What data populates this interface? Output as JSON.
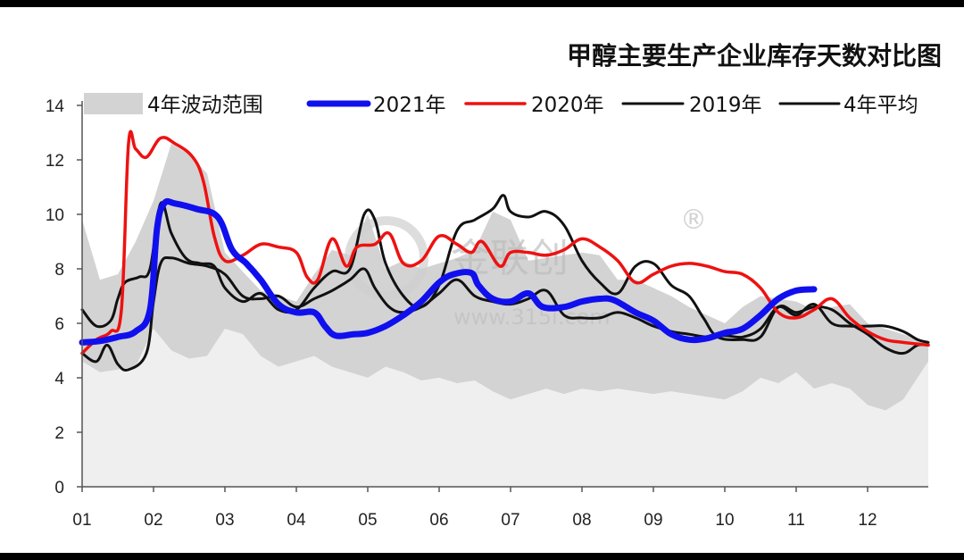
{
  "chart_data": {
    "type": "line",
    "title": "甲醇主要生产企业库存天数对比图",
    "xlabel": "",
    "ylabel": "",
    "ylim": [
      0,
      14
    ],
    "yticks": [
      "0",
      "2",
      "4",
      "6",
      "8",
      "10",
      "12",
      "14"
    ],
    "xlim": [
      0,
      11.85
    ],
    "xticks": [
      "01",
      "02",
      "03",
      "04",
      "05",
      "06",
      "07",
      "08",
      "09",
      "10",
      "11",
      "12"
    ],
    "watermark": {
      "logo": "金联创",
      "registered": "®",
      "url": "www.315i.com"
    },
    "range_band": {
      "name": "4年波动范围",
      "color": "#d3d3d3",
      "upper": [
        [
          0,
          9.8
        ],
        [
          0.25,
          7.6
        ],
        [
          0.5,
          7.8
        ],
        [
          0.75,
          9.0
        ],
        [
          1.0,
          10.5
        ],
        [
          1.25,
          12.6
        ],
        [
          1.5,
          12.2
        ],
        [
          1.75,
          11.5
        ],
        [
          2.0,
          8.6
        ],
        [
          2.25,
          7.9
        ],
        [
          2.5,
          7.2
        ],
        [
          2.75,
          7.0
        ],
        [
          3.0,
          6.8
        ],
        [
          3.25,
          7.8
        ],
        [
          3.5,
          8.7
        ],
        [
          3.75,
          8.5
        ],
        [
          4.0,
          10.0
        ],
        [
          4.25,
          8.0
        ],
        [
          4.5,
          8.3
        ],
        [
          4.75,
          8.0
        ],
        [
          5.0,
          8.2
        ],
        [
          5.25,
          8.4
        ],
        [
          5.5,
          8.7
        ],
        [
          5.75,
          10.1
        ],
        [
          6.0,
          9.8
        ],
        [
          6.25,
          8.3
        ],
        [
          6.5,
          8.4
        ],
        [
          6.75,
          8.5
        ],
        [
          7.0,
          8.6
        ],
        [
          7.25,
          8.5
        ],
        [
          7.5,
          7.6
        ],
        [
          7.75,
          7.6
        ],
        [
          8.0,
          7.3
        ],
        [
          8.25,
          7.0
        ],
        [
          8.5,
          6.6
        ],
        [
          8.75,
          6.3
        ],
        [
          9.0,
          6.0
        ],
        [
          9.25,
          6.6
        ],
        [
          9.5,
          7.0
        ],
        [
          9.75,
          6.9
        ],
        [
          10.0,
          6.8
        ],
        [
          10.25,
          6.5
        ],
        [
          10.5,
          6.6
        ],
        [
          10.75,
          6.7
        ],
        [
          11.0,
          6.0
        ],
        [
          11.25,
          5.8
        ],
        [
          11.5,
          5.6
        ],
        [
          11.85,
          5.3
        ]
      ],
      "lower": [
        [
          0,
          4.6
        ],
        [
          0.25,
          4.2
        ],
        [
          0.5,
          4.3
        ],
        [
          0.75,
          4.4
        ],
        [
          1.0,
          5.8
        ],
        [
          1.25,
          5.0
        ],
        [
          1.5,
          4.7
        ],
        [
          1.75,
          4.8
        ],
        [
          2.0,
          5.8
        ],
        [
          2.25,
          5.6
        ],
        [
          2.5,
          4.8
        ],
        [
          2.75,
          4.4
        ],
        [
          3.0,
          4.6
        ],
        [
          3.25,
          4.8
        ],
        [
          3.5,
          4.4
        ],
        [
          3.75,
          4.2
        ],
        [
          4.0,
          4.0
        ],
        [
          4.25,
          4.4
        ],
        [
          4.5,
          4.2
        ],
        [
          4.75,
          3.9
        ],
        [
          5.0,
          4.0
        ],
        [
          5.25,
          3.8
        ],
        [
          5.5,
          3.9
        ],
        [
          5.75,
          3.5
        ],
        [
          6.0,
          3.2
        ],
        [
          6.25,
          3.4
        ],
        [
          6.5,
          3.6
        ],
        [
          6.75,
          3.4
        ],
        [
          7.0,
          3.6
        ],
        [
          7.25,
          3.5
        ],
        [
          7.5,
          3.6
        ],
        [
          7.75,
          3.5
        ],
        [
          8.0,
          3.4
        ],
        [
          8.25,
          3.5
        ],
        [
          8.5,
          3.4
        ],
        [
          8.75,
          3.3
        ],
        [
          9.0,
          3.2
        ],
        [
          9.25,
          3.5
        ],
        [
          9.5,
          4.0
        ],
        [
          9.75,
          3.8
        ],
        [
          10.0,
          4.2
        ],
        [
          10.25,
          3.6
        ],
        [
          10.5,
          3.8
        ],
        [
          10.75,
          3.6
        ],
        [
          11.0,
          3.0
        ],
        [
          11.25,
          2.8
        ],
        [
          11.5,
          3.2
        ],
        [
          11.85,
          4.6
        ]
      ]
    },
    "series": [
      {
        "name": "2021年",
        "color": "#1010ee",
        "width": 7,
        "points": [
          [
            0,
            5.3
          ],
          [
            0.25,
            5.35
          ],
          [
            0.5,
            5.5
          ],
          [
            0.75,
            5.7
          ],
          [
            0.95,
            6.5
          ],
          [
            1.05,
            9.5
          ],
          [
            1.15,
            10.4
          ],
          [
            1.3,
            10.4
          ],
          [
            1.6,
            10.2
          ],
          [
            1.9,
            9.9
          ],
          [
            2.1,
            8.7
          ],
          [
            2.3,
            8.2
          ],
          [
            2.5,
            7.6
          ],
          [
            2.75,
            6.7
          ],
          [
            3.0,
            6.4
          ],
          [
            3.25,
            6.4
          ],
          [
            3.4,
            5.9
          ],
          [
            3.55,
            5.55
          ],
          [
            3.8,
            5.6
          ],
          [
            4.0,
            5.65
          ],
          [
            4.25,
            5.9
          ],
          [
            4.5,
            6.3
          ],
          [
            4.75,
            6.8
          ],
          [
            5.0,
            7.5
          ],
          [
            5.2,
            7.8
          ],
          [
            5.45,
            7.85
          ],
          [
            5.55,
            7.4
          ],
          [
            5.75,
            6.9
          ],
          [
            6.0,
            6.8
          ],
          [
            6.25,
            7.1
          ],
          [
            6.45,
            6.6
          ],
          [
            6.75,
            6.6
          ],
          [
            7.0,
            6.8
          ],
          [
            7.25,
            6.9
          ],
          [
            7.45,
            6.85
          ],
          [
            7.75,
            6.4
          ],
          [
            8.0,
            6.1
          ],
          [
            8.25,
            5.6
          ],
          [
            8.5,
            5.4
          ],
          [
            8.75,
            5.45
          ],
          [
            9.0,
            5.65
          ],
          [
            9.25,
            5.8
          ],
          [
            9.5,
            6.3
          ],
          [
            9.75,
            6.9
          ],
          [
            10.0,
            7.2
          ],
          [
            10.25,
            7.25
          ]
        ]
      },
      {
        "name": "2020年",
        "color": "#ee1111",
        "width": 3.5,
        "points": [
          [
            0,
            4.9
          ],
          [
            0.2,
            5.4
          ],
          [
            0.4,
            5.7
          ],
          [
            0.55,
            6.5
          ],
          [
            0.65,
            12.6
          ],
          [
            0.75,
            12.4
          ],
          [
            0.9,
            12.1
          ],
          [
            1.1,
            12.8
          ],
          [
            1.3,
            12.6
          ],
          [
            1.55,
            12.1
          ],
          [
            1.7,
            11.2
          ],
          [
            1.85,
            9.2
          ],
          [
            2.0,
            8.3
          ],
          [
            2.25,
            8.5
          ],
          [
            2.5,
            8.9
          ],
          [
            2.75,
            8.8
          ],
          [
            3.0,
            8.6
          ],
          [
            3.15,
            7.7
          ],
          [
            3.3,
            7.6
          ],
          [
            3.5,
            9.1
          ],
          [
            3.7,
            8.1
          ],
          [
            3.85,
            8.8
          ],
          [
            4.1,
            8.9
          ],
          [
            4.3,
            9.3
          ],
          [
            4.5,
            8.2
          ],
          [
            4.75,
            8.3
          ],
          [
            5.0,
            9.2
          ],
          [
            5.25,
            8.9
          ],
          [
            5.45,
            8.6
          ],
          [
            5.6,
            9.0
          ],
          [
            5.85,
            8.1
          ],
          [
            6.0,
            8.6
          ],
          [
            6.25,
            8.6
          ],
          [
            6.5,
            8.5
          ],
          [
            6.75,
            8.7
          ],
          [
            7.0,
            9.1
          ],
          [
            7.25,
            8.8
          ],
          [
            7.5,
            8.3
          ],
          [
            7.75,
            7.5
          ],
          [
            8.0,
            7.8
          ],
          [
            8.25,
            8.1
          ],
          [
            8.5,
            8.2
          ],
          [
            8.75,
            8.1
          ],
          [
            9.0,
            7.9
          ],
          [
            9.25,
            7.8
          ],
          [
            9.5,
            7.3
          ],
          [
            9.75,
            6.4
          ],
          [
            10.0,
            6.2
          ],
          [
            10.25,
            6.5
          ],
          [
            10.5,
            6.9
          ],
          [
            10.75,
            6.2
          ],
          [
            11.0,
            5.7
          ],
          [
            11.25,
            5.4
          ],
          [
            11.5,
            5.3
          ],
          [
            11.85,
            5.2
          ]
        ]
      },
      {
        "name": "2019年",
        "color": "#111111",
        "width": 3,
        "points": [
          [
            0,
            6.5
          ],
          [
            0.2,
            5.9
          ],
          [
            0.4,
            6.1
          ],
          [
            0.5,
            6.9
          ],
          [
            0.6,
            7.5
          ],
          [
            0.8,
            7.7
          ],
          [
            0.95,
            8.0
          ],
          [
            1.1,
            10.4
          ],
          [
            1.25,
            9.3
          ],
          [
            1.45,
            8.4
          ],
          [
            1.65,
            8.2
          ],
          [
            1.85,
            8.1
          ],
          [
            2.0,
            7.3
          ],
          [
            2.25,
            6.8
          ],
          [
            2.5,
            7.1
          ],
          [
            2.75,
            6.5
          ],
          [
            3.0,
            6.5
          ],
          [
            3.25,
            7.3
          ],
          [
            3.5,
            7.9
          ],
          [
            3.75,
            8.0
          ],
          [
            3.95,
            10.0
          ],
          [
            4.1,
            9.8
          ],
          [
            4.25,
            8.2
          ],
          [
            4.5,
            7.0
          ],
          [
            4.75,
            6.6
          ],
          [
            5.0,
            7.4
          ],
          [
            5.25,
            9.4
          ],
          [
            5.5,
            9.8
          ],
          [
            5.75,
            10.2
          ],
          [
            5.9,
            10.7
          ],
          [
            6.0,
            10.1
          ],
          [
            6.25,
            9.9
          ],
          [
            6.5,
            10.1
          ],
          [
            6.75,
            9.6
          ],
          [
            7.0,
            8.3
          ],
          [
            7.25,
            7.5
          ],
          [
            7.5,
            7.1
          ],
          [
            7.75,
            8.1
          ],
          [
            8.0,
            8.2
          ],
          [
            8.25,
            7.4
          ],
          [
            8.5,
            7.0
          ],
          [
            8.7,
            6.2
          ],
          [
            8.9,
            5.5
          ],
          [
            9.25,
            5.4
          ],
          [
            9.5,
            5.5
          ],
          [
            9.75,
            6.6
          ],
          [
            10.0,
            6.4
          ],
          [
            10.25,
            6.6
          ],
          [
            10.5,
            6.5
          ],
          [
            10.75,
            6.0
          ],
          [
            11.0,
            5.6
          ],
          [
            11.25,
            5.1
          ],
          [
            11.5,
            4.9
          ],
          [
            11.7,
            5.2
          ],
          [
            11.85,
            5.2
          ]
        ]
      },
      {
        "name": "4年平均",
        "color": "#111111",
        "width": 3,
        "points": [
          [
            0,
            4.9
          ],
          [
            0.2,
            4.6
          ],
          [
            0.35,
            5.2
          ],
          [
            0.5,
            4.5
          ],
          [
            0.65,
            4.3
          ],
          [
            0.9,
            4.9
          ],
          [
            1.0,
            6.8
          ],
          [
            1.1,
            8.2
          ],
          [
            1.25,
            8.4
          ],
          [
            1.5,
            8.2
          ],
          [
            1.75,
            8.1
          ],
          [
            2.0,
            7.8
          ],
          [
            2.25,
            7.0
          ],
          [
            2.5,
            6.9
          ],
          [
            2.75,
            7.0
          ],
          [
            3.0,
            6.6
          ],
          [
            3.25,
            6.9
          ],
          [
            3.5,
            7.2
          ],
          [
            3.75,
            7.6
          ],
          [
            3.95,
            8.0
          ],
          [
            4.1,
            7.3
          ],
          [
            4.3,
            6.6
          ],
          [
            4.5,
            6.4
          ],
          [
            4.75,
            6.6
          ],
          [
            5.0,
            7.1
          ],
          [
            5.25,
            7.6
          ],
          [
            5.5,
            7.0
          ],
          [
            5.75,
            6.8
          ],
          [
            6.0,
            6.7
          ],
          [
            6.25,
            6.9
          ],
          [
            6.5,
            7.2
          ],
          [
            6.75,
            6.3
          ],
          [
            7.0,
            6.2
          ],
          [
            7.25,
            6.2
          ],
          [
            7.5,
            6.4
          ],
          [
            7.75,
            6.2
          ],
          [
            8.0,
            5.9
          ],
          [
            8.25,
            5.7
          ],
          [
            8.5,
            5.6
          ],
          [
            8.75,
            5.5
          ],
          [
            9.0,
            5.55
          ],
          [
            9.25,
            5.5
          ],
          [
            9.5,
            5.8
          ],
          [
            9.75,
            6.6
          ],
          [
            10.0,
            6.3
          ],
          [
            10.25,
            6.7
          ],
          [
            10.5,
            6.0
          ],
          [
            10.75,
            5.9
          ],
          [
            11.0,
            5.9
          ],
          [
            11.25,
            5.9
          ],
          [
            11.5,
            5.7
          ],
          [
            11.7,
            5.4
          ],
          [
            11.85,
            5.3
          ]
        ]
      }
    ],
    "legend": [
      {
        "label": "4年波动范围",
        "kind": "area",
        "color": "#d3d3d3"
      },
      {
        "label": "2021年",
        "kind": "line",
        "color": "#1010ee",
        "width": 7
      },
      {
        "label": "2020年",
        "kind": "line",
        "color": "#ee1111",
        "width": 3.5
      },
      {
        "label": "2019年",
        "kind": "line",
        "color": "#111111",
        "width": 3
      },
      {
        "label": "4年平均",
        "kind": "line",
        "color": "#111111",
        "width": 3
      }
    ]
  }
}
